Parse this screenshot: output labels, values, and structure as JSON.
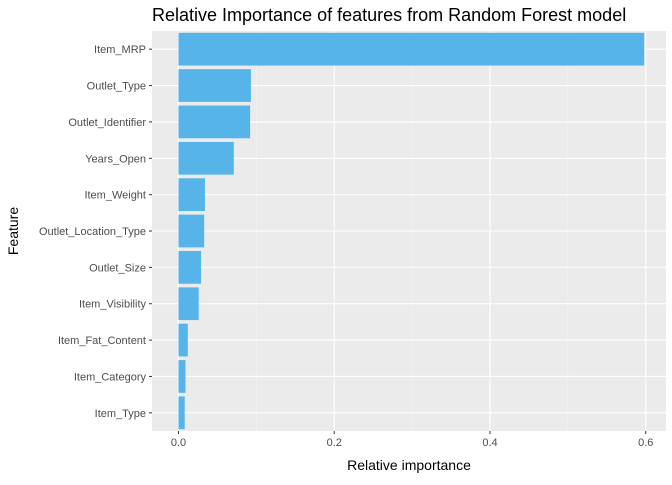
{
  "chart_data": {
    "type": "bar",
    "orientation": "horizontal",
    "title": "Relative Importance of features from Random Forest model",
    "xlabel": "Relative importance",
    "ylabel": "Feature",
    "categories": [
      "Item_MRP",
      "Outlet_Type",
      "Outlet_Identifier",
      "Years_Open",
      "Item_Weight",
      "Outlet_Location_Type",
      "Outlet_Size",
      "Item_Visibility",
      "Item_Fat_Content",
      "Item_Category",
      "Item_Type"
    ],
    "values": [
      0.598,
      0.093,
      0.092,
      0.071,
      0.034,
      0.033,
      0.029,
      0.026,
      0.012,
      0.009,
      0.008
    ],
    "xlim": [
      -0.034,
      0.626
    ],
    "xticks": [
      0.0,
      0.2,
      0.4,
      0.6
    ],
    "xtick_labels": [
      "0.0",
      "0.2",
      "0.4",
      "0.6"
    ],
    "grid": true,
    "legend": "none",
    "colors": {
      "bar": "#56b4e9",
      "panel": "#ebebeb",
      "grid_major": "#ffffff",
      "grid_minor": "#f5f5f5",
      "tick": "#333333"
    }
  }
}
